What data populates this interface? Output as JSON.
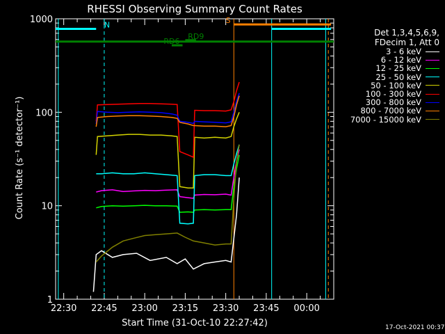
{
  "chart_data": {
    "type": "line",
    "title": "RHESSI Observing Summary Count Rates",
    "xlabel": "Start Time (31-Oct-10 22:27:42)",
    "ylabel": "Count Rate (s⁻¹ detector⁻¹)",
    "yscale": "log",
    "ylim": [
      1,
      1000
    ],
    "xlim_minutes": [
      -3,
      100
    ],
    "yticks": [
      "1",
      "10",
      "100",
      "1000"
    ],
    "xticks": [
      {
        "label": "22:30",
        "t": 0
      },
      {
        "label": "22:45",
        "t": 15
      },
      {
        "label": "23:00",
        "t": 30
      },
      {
        "label": "23:15",
        "t": 45
      },
      {
        "label": "23:30",
        "t": 60
      },
      {
        "label": "23:45",
        "t": 75
      },
      {
        "label": "00:00",
        "t": 90
      }
    ],
    "legend_header": [
      "Det 1,3,4,5,6,9,",
      "FDecim 1, Att 0"
    ],
    "legend_placement": "right, outside plot",
    "grid": false,
    "series": [
      {
        "name": "3 - 6 keV",
        "color": "#ffffff",
        "points": [
          [
            11,
            1.2
          ],
          [
            12,
            3.0
          ],
          [
            14,
            3.3
          ],
          [
            18,
            2.8
          ],
          [
            22,
            3.0
          ],
          [
            27,
            3.1
          ],
          [
            32,
            2.6
          ],
          [
            38,
            2.8
          ],
          [
            42,
            2.4
          ],
          [
            45,
            2.7
          ],
          [
            48,
            2.1
          ],
          [
            52,
            2.4
          ],
          [
            56,
            2.5
          ],
          [
            60,
            2.6
          ],
          [
            62,
            2.5
          ],
          [
            64,
            8
          ],
          [
            65,
            20
          ]
        ]
      },
      {
        "name": "6 - 12 keV",
        "color": "#ff00ff",
        "points": [
          [
            12,
            14
          ],
          [
            14,
            14.5
          ],
          [
            18,
            14.8
          ],
          [
            22,
            14.2
          ],
          [
            26,
            14.4
          ],
          [
            30,
            14.6
          ],
          [
            34,
            14.5
          ],
          [
            38,
            14.7
          ],
          [
            42,
            14.8
          ],
          [
            43,
            12.5
          ],
          [
            46,
            12.2
          ],
          [
            48,
            12
          ],
          [
            48.5,
            13
          ],
          [
            52,
            13.2
          ],
          [
            56,
            13.1
          ],
          [
            60,
            13.3
          ],
          [
            62,
            13
          ],
          [
            63,
            20
          ],
          [
            64,
            30
          ],
          [
            65,
            40
          ]
        ]
      },
      {
        "name": "12 - 25 keV",
        "color": "#00ff00",
        "points": [
          [
            12,
            9.5
          ],
          [
            14,
            9.8
          ],
          [
            18,
            10
          ],
          [
            22,
            9.9
          ],
          [
            26,
            10
          ],
          [
            30,
            10.1
          ],
          [
            34,
            10
          ],
          [
            38,
            10
          ],
          [
            42,
            9.9
          ],
          [
            43,
            8.5
          ],
          [
            46,
            8.6
          ],
          [
            48,
            8.5
          ],
          [
            48.5,
            9
          ],
          [
            52,
            9.1
          ],
          [
            56,
            9
          ],
          [
            60,
            9.1
          ],
          [
            62,
            9.1
          ],
          [
            63,
            16
          ],
          [
            64,
            25
          ],
          [
            65,
            35
          ]
        ]
      },
      {
        "name": "25 - 50 keV",
        "color": "#00ffff",
        "points": [
          [
            12,
            22
          ],
          [
            14,
            22
          ],
          [
            18,
            22.5
          ],
          [
            22,
            22
          ],
          [
            26,
            22
          ],
          [
            30,
            22.5
          ],
          [
            34,
            22
          ],
          [
            38,
            21.5
          ],
          [
            42,
            21
          ],
          [
            43,
            6.5
          ],
          [
            46,
            6.4
          ],
          [
            48,
            6.5
          ],
          [
            48.5,
            21
          ],
          [
            52,
            21.5
          ],
          [
            56,
            21.5
          ],
          [
            60,
            21
          ],
          [
            62,
            21
          ],
          [
            63,
            28
          ],
          [
            64,
            36
          ],
          [
            65,
            45
          ]
        ]
      },
      {
        "name": "50 - 100 keV",
        "color": "#d4d400",
        "points": [
          [
            12,
            35
          ],
          [
            12.5,
            55
          ],
          [
            16,
            56
          ],
          [
            20,
            57
          ],
          [
            24,
            58
          ],
          [
            28,
            58
          ],
          [
            32,
            57
          ],
          [
            36,
            57
          ],
          [
            40,
            56
          ],
          [
            42,
            55
          ],
          [
            43,
            16
          ],
          [
            46,
            15.5
          ],
          [
            48,
            15.5
          ],
          [
            48.5,
            54
          ],
          [
            52,
            53
          ],
          [
            56,
            54
          ],
          [
            60,
            53
          ],
          [
            62,
            55
          ],
          [
            63,
            70
          ],
          [
            64,
            85
          ],
          [
            65,
            100
          ]
        ]
      },
      {
        "name": "100 - 300 keV",
        "color": "#ff0000",
        "points": [
          [
            12,
            80
          ],
          [
            12.5,
            120
          ],
          [
            16,
            121
          ],
          [
            20,
            122
          ],
          [
            24,
            123
          ],
          [
            28,
            124
          ],
          [
            32,
            124
          ],
          [
            36,
            123
          ],
          [
            40,
            122
          ],
          [
            42,
            121
          ],
          [
            43,
            38
          ],
          [
            46,
            35
          ],
          [
            48,
            33
          ],
          [
            48.5,
            105
          ],
          [
            52,
            104
          ],
          [
            56,
            104
          ],
          [
            60,
            103
          ],
          [
            62,
            106
          ],
          [
            63,
            130
          ],
          [
            64,
            170
          ],
          [
            65,
            210
          ]
        ]
      },
      {
        "name": "300 - 800 keV",
        "color": "#0000ff",
        "points": [
          [
            12,
            75
          ],
          [
            12.5,
            102
          ],
          [
            16,
            100
          ],
          [
            20,
            99
          ],
          [
            24,
            100
          ],
          [
            28,
            101
          ],
          [
            32,
            100
          ],
          [
            36,
            99
          ],
          [
            40,
            96
          ],
          [
            42,
            93
          ],
          [
            43,
            80
          ],
          [
            46,
            78
          ],
          [
            48,
            76
          ],
          [
            48.5,
            80
          ],
          [
            52,
            79
          ],
          [
            56,
            78
          ],
          [
            60,
            77
          ],
          [
            62,
            79
          ],
          [
            63,
            100
          ],
          [
            64,
            130
          ],
          [
            65,
            160
          ]
        ]
      },
      {
        "name": "800 - 7000 keV",
        "color": "#ff8000",
        "points": [
          [
            12,
            70
          ],
          [
            12.5,
            88
          ],
          [
            16,
            90
          ],
          [
            20,
            91
          ],
          [
            24,
            92
          ],
          [
            28,
            92
          ],
          [
            32,
            91
          ],
          [
            36,
            90
          ],
          [
            40,
            88
          ],
          [
            42,
            86
          ],
          [
            43,
            78
          ],
          [
            46,
            75
          ],
          [
            48,
            72
          ],
          [
            48.5,
            72
          ],
          [
            52,
            71
          ],
          [
            56,
            71
          ],
          [
            60,
            70
          ],
          [
            62,
            72
          ],
          [
            63,
            90
          ],
          [
            64,
            120
          ],
          [
            65,
            150
          ]
        ]
      },
      {
        "name": "7000 - 15000 keV",
        "color": "#808000",
        "points": [
          [
            12,
            2.5
          ],
          [
            14,
            2.9
          ],
          [
            18,
            3.6
          ],
          [
            22,
            4.2
          ],
          [
            26,
            4.5
          ],
          [
            30,
            4.8
          ],
          [
            34,
            4.9
          ],
          [
            38,
            5.0
          ],
          [
            42,
            5.1
          ],
          [
            45,
            4.6
          ],
          [
            48,
            4.2
          ],
          [
            52,
            4.0
          ],
          [
            56,
            3.8
          ],
          [
            60,
            3.9
          ],
          [
            62,
            3.9
          ],
          [
            63,
            12
          ],
          [
            64,
            30
          ],
          [
            65,
            45
          ]
        ]
      }
    ],
    "annotations": [
      {
        "text": "N",
        "color": "#00ffff",
        "t_start": -3,
        "t_end": 12,
        "level": 780,
        "label_t": 15
      },
      {
        "text": "N",
        "color": "#00ffff",
        "t_start": 77,
        "t_end": 99,
        "level": 780
      },
      {
        "text": "S",
        "color": "#ff8000",
        "t_start": 63,
        "t_end": 99,
        "level": 870,
        "label_t": 60
      },
      {
        "text": "RD6",
        "color": "#008000",
        "t_start": 40,
        "t_end": 44,
        "level": 520,
        "label_t": 37
      },
      {
        "text": "RD9",
        "color": "#008000",
        "t_start": 45,
        "t_end": 49,
        "level": 590,
        "label_t": 46
      },
      {
        "text": "",
        "color": "#008000",
        "t_start": -3,
        "t_end": 100,
        "level": 570
      }
    ],
    "vertical_markers": [
      {
        "t": -2,
        "color": "#00ffff",
        "style": "solid"
      },
      {
        "t": 15,
        "color": "#00ffff",
        "style": "dashed"
      },
      {
        "t": 63,
        "color": "#ff8000",
        "style": "solid"
      },
      {
        "t": 77,
        "color": "#00ffff",
        "style": "solid"
      },
      {
        "t": 97,
        "color": "#00ffff",
        "style": "solid"
      },
      {
        "t": 98,
        "color": "#ff8000",
        "style": "dashed"
      }
    ]
  },
  "timestamp": "17-Oct-2021 00:37"
}
